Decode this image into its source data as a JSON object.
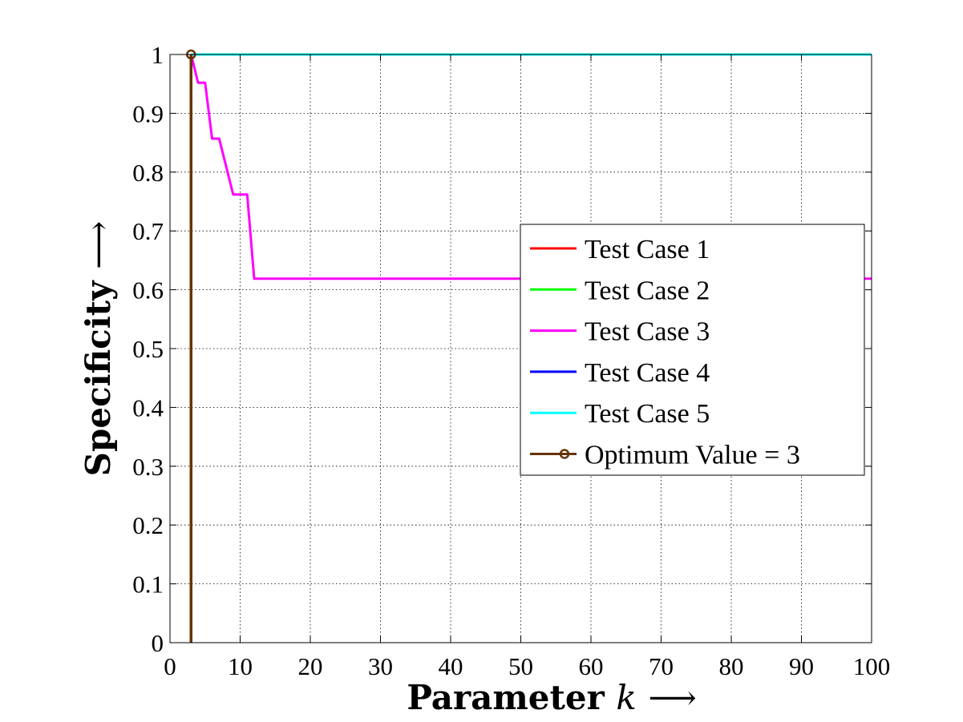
{
  "chart_data": {
    "type": "line",
    "xlabel": "Parameter",
    "xlabel_var": "k",
    "xlabel_arrow": "⟶",
    "ylabel": "Specificity",
    "ylabel_arrow": "⟶",
    "xlim": [
      0,
      100
    ],
    "ylim": [
      0,
      1
    ],
    "xticks": [
      0,
      10,
      20,
      30,
      40,
      50,
      60,
      70,
      80,
      90,
      100
    ],
    "yticks": [
      0,
      0.1,
      0.2,
      0.3,
      0.4,
      0.5,
      0.6,
      0.7,
      0.8,
      0.9,
      1
    ],
    "ytick_labels": [
      "0",
      "0.1",
      "0.2",
      "0.3",
      "0.4",
      "0.5",
      "0.6",
      "0.7",
      "0.8",
      "0.9",
      "1"
    ],
    "grid": true,
    "legend_position": "right",
    "series": [
      {
        "name": "Test Case 1",
        "color": "#ff0000",
        "x": [
          3,
          100
        ],
        "y": [
          1,
          1
        ]
      },
      {
        "name": "Test Case 2",
        "color": "#00ff00",
        "x": [
          3,
          100
        ],
        "y": [
          1,
          1
        ]
      },
      {
        "name": "Test Case 3",
        "color": "#ff00ff",
        "x": [
          3,
          4,
          5,
          6,
          7,
          8,
          9,
          10,
          11,
          12,
          13,
          20,
          30,
          40,
          50,
          60,
          70,
          80,
          90,
          100
        ],
        "y": [
          1,
          0.952,
          0.952,
          0.857,
          0.857,
          0.81,
          0.762,
          0.762,
          0.762,
          0.619,
          0.619,
          0.619,
          0.619,
          0.619,
          0.619,
          0.619,
          0.619,
          0.619,
          0.619,
          0.619
        ]
      },
      {
        "name": "Test Case 4",
        "color": "#0000ff",
        "x": [
          3,
          100
        ],
        "y": [
          1,
          1
        ]
      },
      {
        "name": "Test Case 5",
        "color": "#00ffff",
        "x": [
          3,
          100
        ],
        "y": [
          1,
          1
        ]
      }
    ],
    "optimum": {
      "name": "Optimum Value = 3",
      "color": "#663300",
      "x": 3,
      "y": 1
    }
  }
}
